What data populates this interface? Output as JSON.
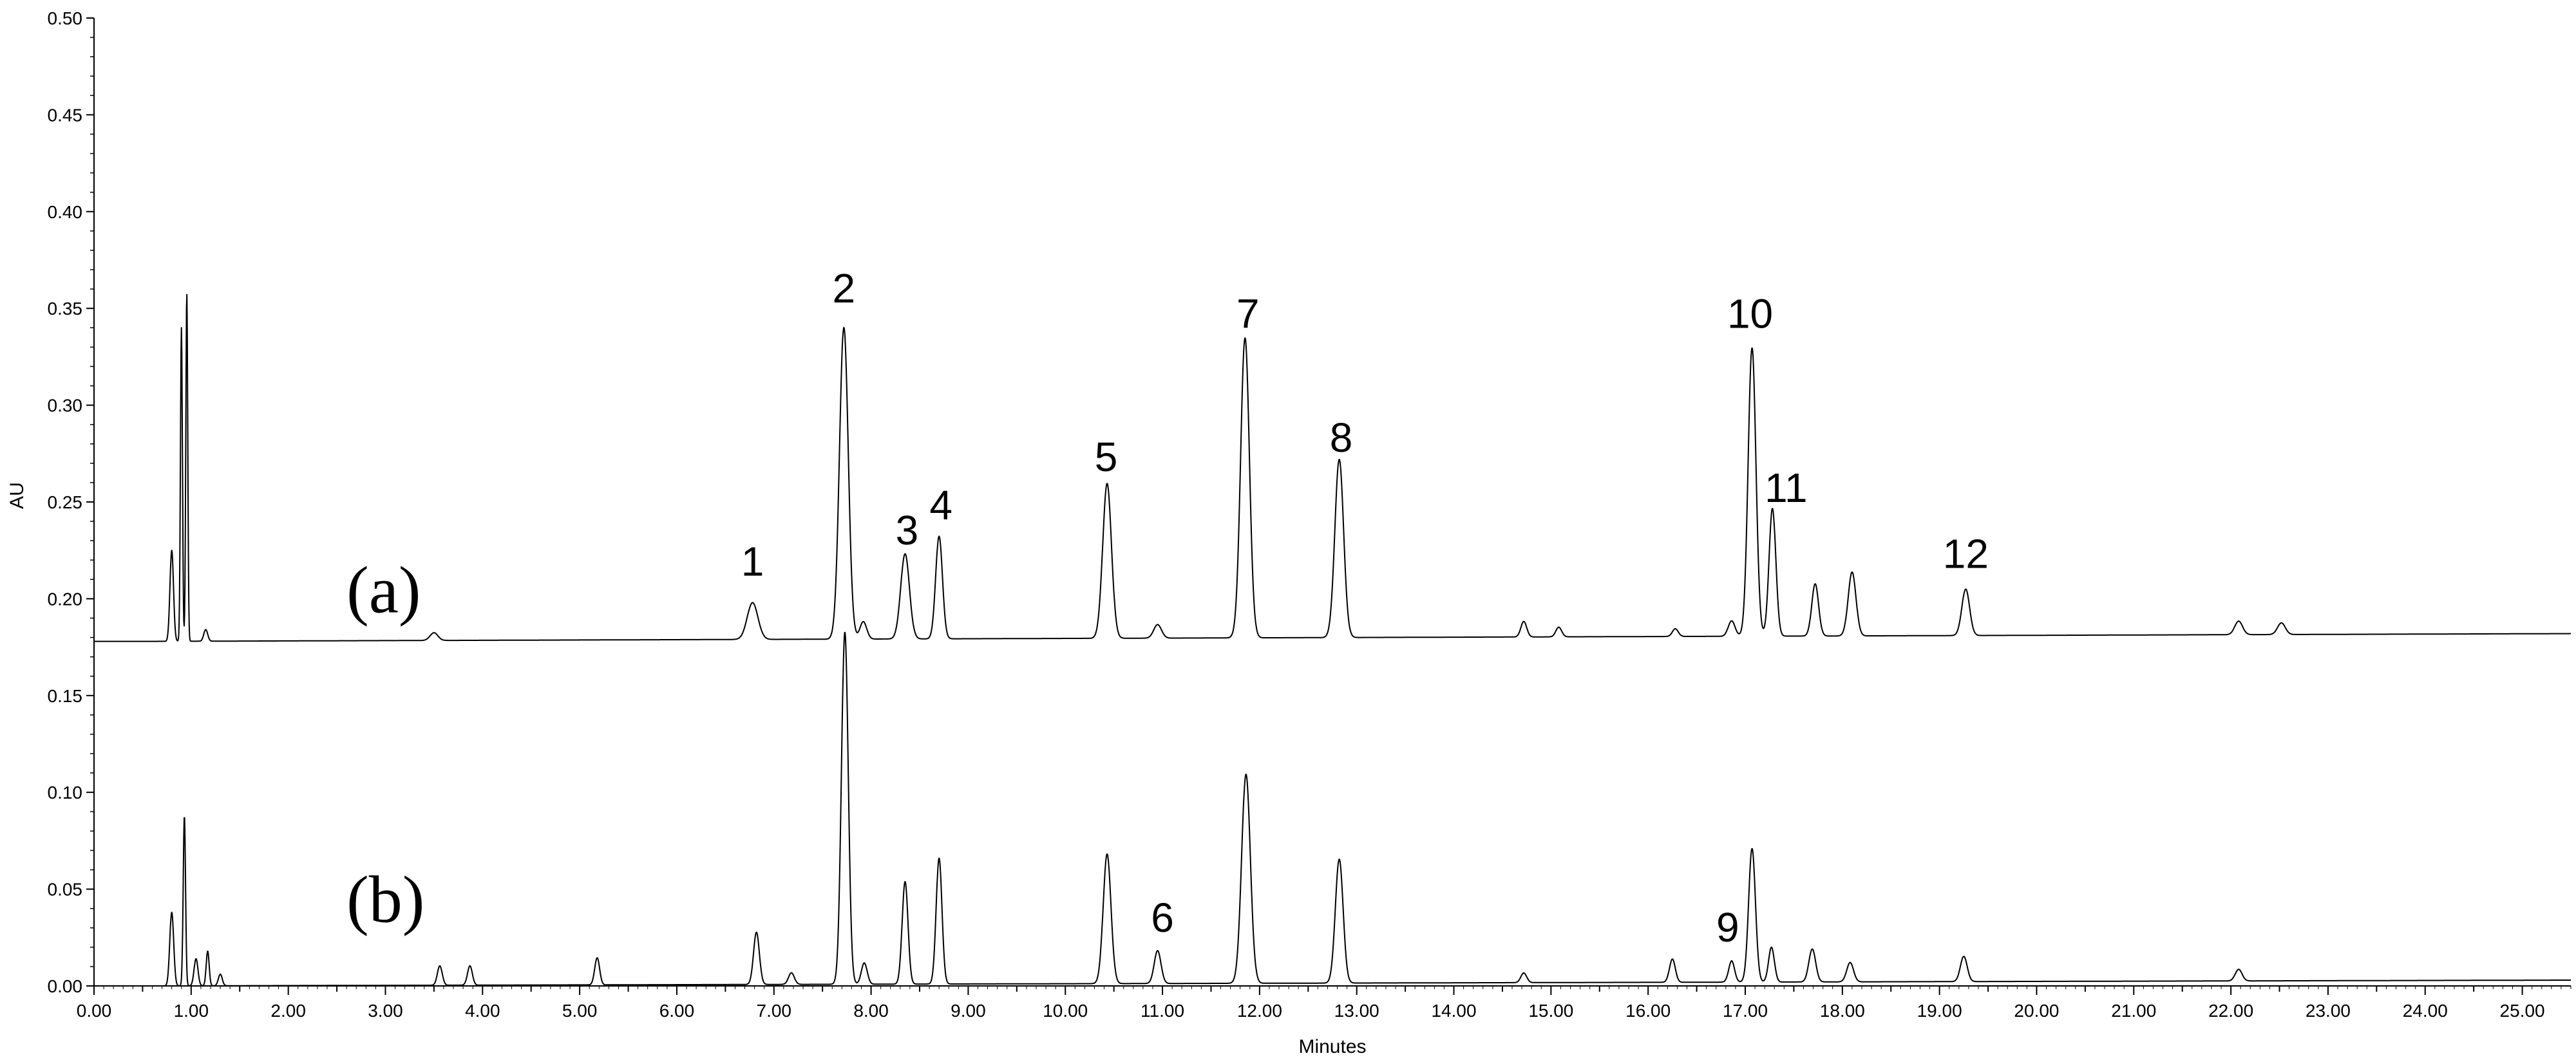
{
  "chart_data": {
    "type": "line",
    "title": "",
    "xlabel": "Minutes",
    "ylabel": "AU",
    "xlim": [
      0,
      25.5
    ],
    "ylim": [
      0,
      0.5
    ],
    "x_ticks": [
      0,
      0.5,
      1,
      1.5,
      2,
      2.5,
      3,
      3.5,
      4,
      4.5,
      5,
      5.5,
      6,
      6.5,
      7,
      7.5,
      8,
      8.5,
      9,
      9.5,
      10,
      10.5,
      11,
      11.5,
      12,
      12.5,
      13,
      13.5,
      14,
      14.5,
      15,
      15.5,
      16,
      16.5,
      17,
      17.5,
      18,
      18.5,
      19,
      19.5,
      20,
      20.5,
      21,
      21.5,
      22,
      22.5,
      23,
      23.5,
      24,
      24.5,
      25
    ],
    "x_tick_labels": [
      "0.00",
      "1.00",
      "2.00",
      "3.00",
      "4.00",
      "5.00",
      "6.00",
      "7.00",
      "8.00",
      "9.00",
      "10.00",
      "11.00",
      "12.00",
      "13.00",
      "14.00",
      "15.00",
      "16.00",
      "17.00",
      "18.00",
      "19.00",
      "20.00",
      "21.00",
      "22.00",
      "23.00",
      "24.00",
      "25.00"
    ],
    "y_tick_labels": [
      "0.00",
      "0.05",
      "0.10",
      "0.15",
      "0.20",
      "0.25",
      "0.30",
      "0.35",
      "0.40",
      "0.45",
      "0.50"
    ],
    "grid": false,
    "series": [
      {
        "name": "(a)",
        "baseline": 0.178,
        "drift_end": 0.182,
        "peaks": [
          {
            "x": 0.8,
            "y": 0.225,
            "w": 0.018
          },
          {
            "x": 0.9,
            "y": 0.34,
            "w": 0.01
          },
          {
            "x": 0.955,
            "y": 0.358,
            "w": 0.01
          },
          {
            "x": 1.15,
            "y": 0.184,
            "w": 0.02
          },
          {
            "x": 3.5,
            "y": 0.182,
            "w": 0.04
          },
          {
            "x": 6.78,
            "y": 0.197,
            "w": 0.055
          },
          {
            "x": 7.72,
            "y": 0.339,
            "w": 0.045
          },
          {
            "x": 7.92,
            "y": 0.187,
            "w": 0.035
          },
          {
            "x": 8.35,
            "y": 0.222,
            "w": 0.045
          },
          {
            "x": 8.7,
            "y": 0.231,
            "w": 0.035
          },
          {
            "x": 10.43,
            "y": 0.258,
            "w": 0.045
          },
          {
            "x": 10.95,
            "y": 0.185,
            "w": 0.04
          },
          {
            "x": 11.85,
            "y": 0.333,
            "w": 0.045
          },
          {
            "x": 12.82,
            "y": 0.27,
            "w": 0.045
          },
          {
            "x": 14.72,
            "y": 0.186,
            "w": 0.03
          },
          {
            "x": 15.08,
            "y": 0.183,
            "w": 0.03
          },
          {
            "x": 16.28,
            "y": 0.182,
            "w": 0.03
          },
          {
            "x": 16.86,
            "y": 0.186,
            "w": 0.035
          },
          {
            "x": 17.07,
            "y": 0.327,
            "w": 0.04
          },
          {
            "x": 17.28,
            "y": 0.244,
            "w": 0.035
          },
          {
            "x": 17.72,
            "y": 0.205,
            "w": 0.035
          },
          {
            "x": 18.1,
            "y": 0.211,
            "w": 0.04
          },
          {
            "x": 19.27,
            "y": 0.202,
            "w": 0.04
          },
          {
            "x": 22.08,
            "y": 0.185,
            "w": 0.04
          },
          {
            "x": 22.52,
            "y": 0.184,
            "w": 0.04
          }
        ]
      },
      {
        "name": "(b)",
        "baseline": 0.0,
        "drift_end": 0.003,
        "peaks": [
          {
            "x": 0.8,
            "y": 0.038,
            "w": 0.02
          },
          {
            "x": 0.93,
            "y": 0.088,
            "w": 0.012
          },
          {
            "x": 1.05,
            "y": 0.014,
            "w": 0.02
          },
          {
            "x": 1.17,
            "y": 0.018,
            "w": 0.015
          },
          {
            "x": 1.3,
            "y": 0.006,
            "w": 0.02
          },
          {
            "x": 3.56,
            "y": 0.01,
            "w": 0.025
          },
          {
            "x": 3.87,
            "y": 0.01,
            "w": 0.025
          },
          {
            "x": 5.18,
            "y": 0.014,
            "w": 0.025
          },
          {
            "x": 6.82,
            "y": 0.027,
            "w": 0.03
          },
          {
            "x": 7.18,
            "y": 0.006,
            "w": 0.03
          },
          {
            "x": 7.73,
            "y": 0.182,
            "w": 0.035
          },
          {
            "x": 7.93,
            "y": 0.011,
            "w": 0.03
          },
          {
            "x": 8.35,
            "y": 0.053,
            "w": 0.03
          },
          {
            "x": 8.7,
            "y": 0.065,
            "w": 0.03
          },
          {
            "x": 10.43,
            "y": 0.067,
            "w": 0.04
          },
          {
            "x": 10.95,
            "y": 0.017,
            "w": 0.035
          },
          {
            "x": 11.86,
            "y": 0.108,
            "w": 0.045
          },
          {
            "x": 12.82,
            "y": 0.064,
            "w": 0.04
          },
          {
            "x": 14.72,
            "y": 0.005,
            "w": 0.03
          },
          {
            "x": 16.25,
            "y": 0.012,
            "w": 0.03
          },
          {
            "x": 16.86,
            "y": 0.011,
            "w": 0.03
          },
          {
            "x": 17.07,
            "y": 0.069,
            "w": 0.035
          },
          {
            "x": 17.27,
            "y": 0.018,
            "w": 0.03
          },
          {
            "x": 17.69,
            "y": 0.017,
            "w": 0.035
          },
          {
            "x": 18.08,
            "y": 0.01,
            "w": 0.035
          },
          {
            "x": 19.25,
            "y": 0.013,
            "w": 0.035
          },
          {
            "x": 22.08,
            "y": 0.006,
            "w": 0.035
          }
        ]
      }
    ],
    "trace_labels": [
      {
        "text": "(a)",
        "x": 2.6,
        "y": 0.205
      },
      {
        "text": "(b)",
        "x": 2.6,
        "y": 0.045
      }
    ],
    "annotations": [
      {
        "text": "1",
        "x": 6.78,
        "y": 0.212
      },
      {
        "text": "2",
        "x": 7.72,
        "y": 0.353
      },
      {
        "text": "3",
        "x": 8.37,
        "y": 0.228
      },
      {
        "text": "4",
        "x": 8.72,
        "y": 0.241
      },
      {
        "text": "5",
        "x": 10.42,
        "y": 0.266
      },
      {
        "text": "6",
        "x": 11.0,
        "y": 0.028
      },
      {
        "text": "7",
        "x": 11.88,
        "y": 0.34
      },
      {
        "text": "8",
        "x": 12.84,
        "y": 0.276
      },
      {
        "text": "9",
        "x": 16.82,
        "y": 0.023
      },
      {
        "text": "10",
        "x": 17.05,
        "y": 0.34
      },
      {
        "text": "11",
        "x": 17.42,
        "y": 0.25
      },
      {
        "text": "12",
        "x": 19.27,
        "y": 0.216
      }
    ]
  }
}
